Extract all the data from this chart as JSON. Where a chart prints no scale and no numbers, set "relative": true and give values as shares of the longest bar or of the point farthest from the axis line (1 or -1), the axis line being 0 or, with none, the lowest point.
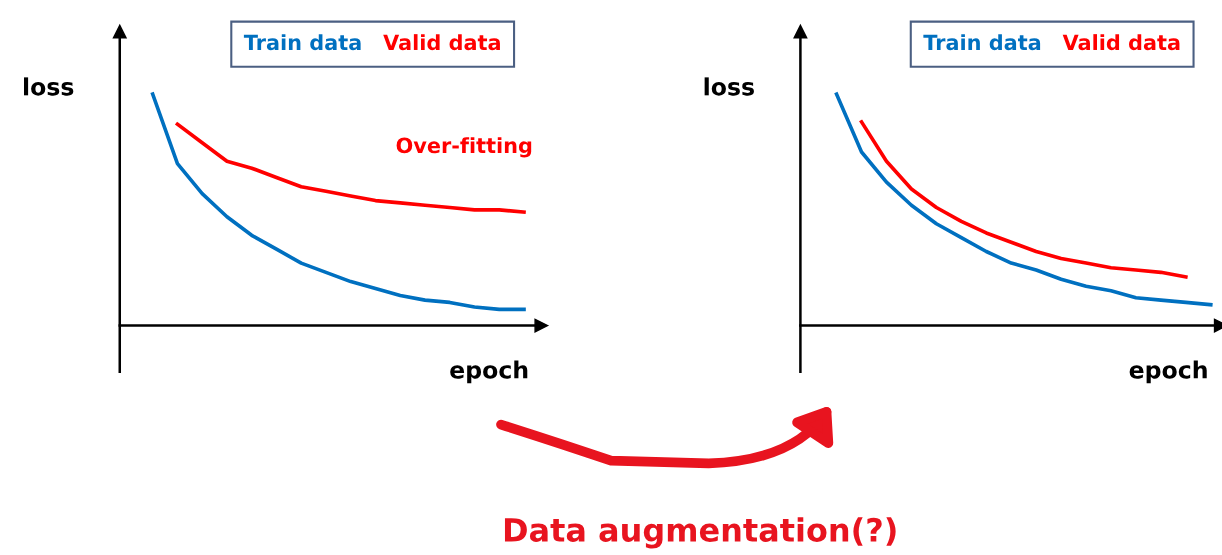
{
  "chart_data": [
    {
      "type": "line",
      "relative": true,
      "ylabel": "loss",
      "xlabel": "epoch",
      "legend": "top",
      "grid": false,
      "marker": "none",
      "line_style": "solid",
      "categories": [
        null,
        null,
        null,
        null,
        null,
        null,
        null,
        null,
        null,
        null,
        null,
        null,
        null,
        null,
        null,
        null
      ],
      "series": [
        {
          "name": "Train data",
          "color": "#0070c0",
          "values": [
            1.0,
            0.7,
            0.57,
            0.47,
            0.39,
            0.33,
            0.27,
            0.23,
            0.19,
            0.16,
            0.13,
            0.11,
            0.1,
            0.08,
            0.07,
            0.07
          ]
        },
        {
          "name": "Valid data",
          "color": "#ff0000",
          "values": [
            null,
            0.87,
            0.79,
            0.71,
            0.68,
            0.64,
            0.6,
            0.58,
            0.56,
            0.54,
            0.53,
            0.52,
            0.51,
            0.5,
            0.5,
            0.49
          ]
        }
      ],
      "annotations": [
        "Over-fitting"
      ]
    },
    {
      "type": "line",
      "relative": true,
      "ylabel": "loss",
      "xlabel": "epoch",
      "legend": "top",
      "grid": false,
      "marker": "none",
      "line_style": "solid",
      "categories": [
        null,
        null,
        null,
        null,
        null,
        null,
        null,
        null,
        null,
        null,
        null,
        null,
        null,
        null,
        null,
        null
      ],
      "series": [
        {
          "name": "Train data",
          "color": "#0070c0",
          "values": [
            1.0,
            0.75,
            0.62,
            0.52,
            0.44,
            0.38,
            0.32,
            0.27,
            0.24,
            0.2,
            0.17,
            0.15,
            0.12,
            0.11,
            0.1,
            0.09
          ]
        },
        {
          "name": "Valid data",
          "color": "#ff0000",
          "values": [
            null,
            0.88,
            0.71,
            0.59,
            0.51,
            0.45,
            0.4,
            0.36,
            0.32,
            0.29,
            0.27,
            0.25,
            0.24,
            0.23,
            0.21,
            null
          ]
        }
      ],
      "annotations": [
        "Data augmentation(?)"
      ]
    }
  ]
}
